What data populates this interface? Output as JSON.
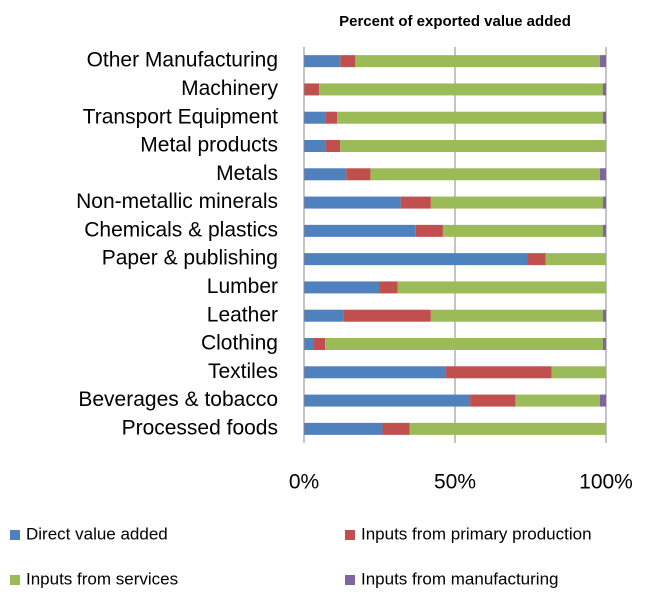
{
  "chart_data": {
    "type": "stacked-bar-horizontal",
    "title": "Percent of exported value added",
    "categories": [
      "Other Manufacturing",
      "Machinery",
      "Transport Equipment",
      "Metal products",
      "Metals",
      "Non-metallic minerals",
      "Chemicals & plastics",
      "Paper & publishing",
      "Lumber",
      "Leather",
      "Clothing",
      "Textiles",
      "Beverages & tobacco",
      "Processed foods"
    ],
    "series": [
      {
        "name": "Direct value added",
        "color": "#4f81bd",
        "values": [
          12,
          0,
          7,
          7,
          14,
          32,
          37,
          74,
          25,
          13,
          3,
          47,
          55,
          26
        ]
      },
      {
        "name": "Inputs from primary production",
        "color": "#c0504d",
        "values": [
          5,
          5,
          4,
          5,
          8,
          10,
          9,
          6,
          6,
          29,
          4,
          35,
          15,
          9
        ]
      },
      {
        "name": "Inputs from services",
        "color": "#9bbb59",
        "values": [
          81,
          94,
          88,
          88,
          76,
          57,
          53,
          20,
          69,
          57,
          92,
          18,
          28,
          65
        ]
      },
      {
        "name": "Inputs from manufacturing",
        "color": "#8064a2",
        "values": [
          2,
          1,
          1,
          0,
          2,
          1,
          1,
          0,
          0,
          1,
          1,
          0,
          2,
          0
        ]
      }
    ],
    "xlim": [
      0,
      100
    ],
    "xticks": [
      {
        "value": 0,
        "label": "0%"
      },
      {
        "value": 50,
        "label": "50%"
      },
      {
        "value": 100,
        "label": "100%"
      }
    ],
    "grid": true
  }
}
